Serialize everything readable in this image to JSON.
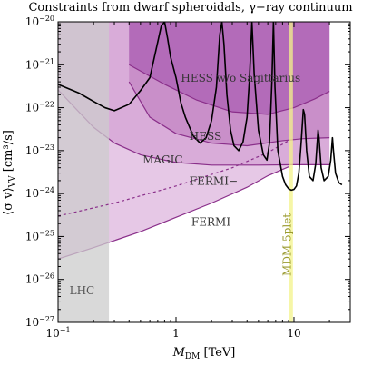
{
  "chart_data": {
    "type": "area",
    "title": "Constraints from dwarf spheroidals, γ−ray continuum",
    "xlabel": {
      "main": "M",
      "sub": "DM",
      "unit": " [TeV]"
    },
    "ylabel": {
      "main": "⟨σ v⟩",
      "sub": "VV",
      "unit": " [cm³/s]"
    },
    "x_scale": "log",
    "y_scale": "log",
    "xlim": [
      0.1,
      30
    ],
    "ylim": [
      1e-27,
      1e-20
    ],
    "x_ticks": [
      {
        "value": 0.1,
        "base": "10",
        "exp": "−1"
      },
      {
        "value": 1,
        "base": "1",
        "exp": ""
      },
      {
        "value": 10,
        "base": "10",
        "exp": ""
      }
    ],
    "y_ticks": [
      {
        "value": 1e-27,
        "base": "10",
        "exp": "−27"
      },
      {
        "value": 1e-26,
        "base": "10",
        "exp": "−26"
      },
      {
        "value": 1e-25,
        "base": "10",
        "exp": "−25"
      },
      {
        "value": 1e-24,
        "base": "10",
        "exp": "−24"
      },
      {
        "value": 1e-23,
        "base": "10",
        "exp": "−23"
      },
      {
        "value": 1e-22,
        "base": "10",
        "exp": "−22"
      },
      {
        "value": 1e-21,
        "base": "10",
        "exp": "−21"
      },
      {
        "value": 1e-20,
        "base": "10",
        "exp": "−20"
      }
    ],
    "regions": [
      {
        "name": "FERMI",
        "color": "#e6c8e6",
        "boundary": [
          [
            0.1,
            3e-26
          ],
          [
            0.2,
            5.5e-26
          ],
          [
            0.5,
            1.3e-25
          ],
          [
            1,
            2.8e-25
          ],
          [
            2,
            6e-25
          ],
          [
            4,
            1.4e-24
          ],
          [
            6,
            2.6e-24
          ],
          [
            9,
            4.2e-24
          ]
        ]
      },
      {
        "name": "MAGIC",
        "color": "#d9acd9",
        "boundary": [
          [
            0.1,
            2.6e-22
          ],
          [
            0.15,
            8e-23
          ],
          [
            0.2,
            3.5e-23
          ],
          [
            0.3,
            1.5e-23
          ],
          [
            0.5,
            8e-24
          ],
          [
            0.8,
            6e-24
          ],
          [
            1,
            5.3e-24
          ],
          [
            2,
            4.6e-24
          ],
          [
            5,
            4.6e-24
          ],
          [
            10,
            4.7e-24
          ],
          [
            20,
            4.7e-24
          ]
        ]
      },
      {
        "name": "HESS",
        "color": "#c98fc9",
        "boundary": [
          [
            0.4,
            4e-22
          ],
          [
            0.6,
            6e-23
          ],
          [
            1,
            2.5e-23
          ],
          [
            2,
            1.5e-23
          ],
          [
            4,
            1.3e-23
          ],
          [
            8,
            1.7e-23
          ],
          [
            12,
            1.9e-23
          ],
          [
            20,
            2e-23
          ]
        ]
      },
      {
        "name": "HESS w/o Sagittarius",
        "color": "#b36bb9",
        "boundary": [
          [
            0.4,
            1e-21
          ],
          [
            0.8,
            3.5e-22
          ],
          [
            1.5,
            1.5e-22
          ],
          [
            3,
            8e-23
          ],
          [
            6,
            7e-23
          ],
          [
            10,
            1e-22
          ],
          [
            15,
            1.6e-22
          ],
          [
            20,
            2.4e-22
          ]
        ]
      },
      {
        "name": "LHC",
        "color": "#cccccc",
        "x_range": [
          0.1,
          0.27
        ]
      },
      {
        "name": "MDM 5plet",
        "color": "#f3f38a",
        "x_range": [
          9.0,
          9.8
        ]
      }
    ],
    "series": [
      {
        "name": "FERMI−",
        "style": "dashed",
        "color": "#8a2f8a",
        "points": [
          [
            0.1,
            3e-25
          ],
          [
            0.3,
            6e-25
          ],
          [
            1,
            1.5e-24
          ],
          [
            3,
            4e-24
          ],
          [
            6,
            9e-24
          ],
          [
            9,
            1.7e-23
          ]
        ]
      },
      {
        "name": "",
        "style": "solid",
        "color": "#000000",
        "points": [
          [
            0.1,
            3.5e-22
          ],
          [
            0.15,
            2.2e-22
          ],
          [
            0.2,
            1.4e-22
          ],
          [
            0.25,
            1e-22
          ],
          [
            0.3,
            8.5e-23
          ],
          [
            0.4,
            1.2e-22
          ],
          [
            0.5,
            2.5e-22
          ],
          [
            0.6,
            5e-22
          ],
          [
            0.75,
            8e-21
          ],
          [
            0.8,
            1e-20
          ],
          [
            0.85,
            4e-21
          ],
          [
            0.9,
            1.5e-21
          ],
          [
            1,
            5e-22
          ],
          [
            1.1,
            1.3e-22
          ],
          [
            1.2,
            6e-23
          ],
          [
            1.4,
            2.2e-23
          ],
          [
            1.6,
            1.5e-23
          ],
          [
            1.8,
            2e-23
          ],
          [
            2,
            5e-23
          ],
          [
            2.2,
            3e-22
          ],
          [
            2.35,
            5e-21
          ],
          [
            2.45,
            1e-20
          ],
          [
            2.55,
            3e-21
          ],
          [
            2.7,
            2e-22
          ],
          [
            2.9,
            3e-23
          ],
          [
            3.1,
            1.3e-23
          ],
          [
            3.4,
            1e-23
          ],
          [
            3.7,
            1.6e-23
          ],
          [
            4,
            6e-23
          ],
          [
            4.2,
            5e-22
          ],
          [
            4.4,
            1e-20
          ],
          [
            4.6,
            6e-22
          ],
          [
            5,
            3e-23
          ],
          [
            5.5,
            8e-24
          ],
          [
            5.9,
            6e-24
          ],
          [
            6.2,
            1.5e-23
          ],
          [
            6.5,
            4e-22
          ],
          [
            6.7,
            1e-20
          ],
          [
            6.9,
            3e-22
          ],
          [
            7.3,
            1e-23
          ],
          [
            8,
            2.5e-24
          ],
          [
            8.5,
            1.6e-24
          ],
          [
            9,
            1.3e-24
          ],
          [
            9.5,
            1.2e-24
          ],
          [
            10,
            1.25e-24
          ],
          [
            10.5,
            1.5e-24
          ],
          [
            11,
            3e-24
          ],
          [
            11.5,
            1.5e-23
          ],
          [
            12,
            9e-23
          ],
          [
            12.3,
            7e-23
          ],
          [
            12.8,
            1e-23
          ],
          [
            13.5,
            2.5e-24
          ],
          [
            14.5,
            2e-24
          ],
          [
            15.3,
            5e-24
          ],
          [
            16,
            3e-23
          ],
          [
            16.3,
            2e-23
          ],
          [
            17,
            4e-24
          ],
          [
            18,
            2e-24
          ],
          [
            19.5,
            2.5e-24
          ],
          [
            20.5,
            6e-24
          ],
          [
            21.2,
            2e-23
          ],
          [
            21.6,
            1e-23
          ],
          [
            22.5,
            3e-24
          ],
          [
            24,
            1.8e-24
          ],
          [
            25.5,
            1.6e-24
          ]
        ]
      }
    ],
    "labels": [
      {
        "text": "HESS w/o Sagittarius",
        "x": 1.1,
        "y": 4e-22
      },
      {
        "text": "HESS",
        "x": 1.3,
        "y": 1.8e-23
      },
      {
        "text": "MAGIC",
        "x": 0.52,
        "y": 5e-24
      },
      {
        "text": "FERMI−",
        "x": 1.3,
        "y": 1.6e-24
      },
      {
        "text": "FERMI",
        "x": 1.35,
        "y": 1.8e-25
      },
      {
        "text": "LHC",
        "x": 0.125,
        "y": 4.5e-27
      },
      {
        "text": "MDM 5plet",
        "x": 9.4,
        "y": 1.2e-26,
        "rotate": -90
      }
    ],
    "grid": false,
    "legend": "none"
  }
}
